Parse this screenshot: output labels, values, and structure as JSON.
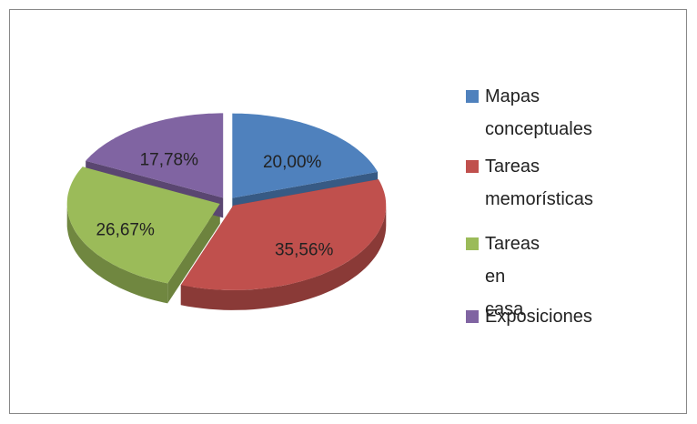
{
  "chart_data": {
    "type": "pie",
    "categories": [
      "Mapas conceptuales",
      "Tareas memorísticas",
      "Tareas en casa",
      "Exposiciones"
    ],
    "values": [
      20.0,
      35.56,
      26.67,
      17.78
    ],
    "value_labels": [
      "20,00%",
      "35,56%",
      "26,67%",
      "17,78%"
    ],
    "colors": [
      "#4f81bd",
      "#c0504d",
      "#9bbb59",
      "#8064a2"
    ],
    "legend": "right"
  }
}
